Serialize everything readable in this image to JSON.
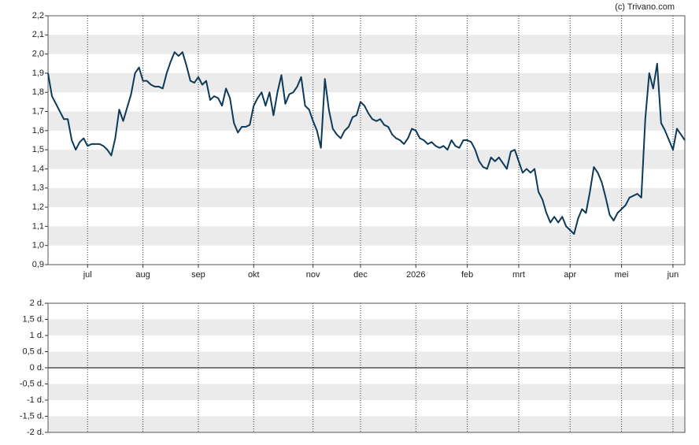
{
  "credit": "(c) Trivano.com",
  "chart_data": [
    {
      "type": "line",
      "categories": [
        null,
        null,
        null,
        null,
        null,
        null,
        null,
        null,
        null,
        null,
        "jul",
        null,
        null,
        null,
        null,
        null,
        null,
        null,
        null,
        null,
        null,
        null,
        null,
        null,
        "aug",
        null,
        null,
        null,
        null,
        null,
        null,
        null,
        null,
        null,
        null,
        null,
        null,
        null,
        "sep",
        null,
        null,
        null,
        null,
        null,
        null,
        null,
        null,
        null,
        null,
        null,
        null,
        null,
        "okt",
        null,
        null,
        null,
        null,
        null,
        null,
        null,
        null,
        null,
        null,
        null,
        null,
        null,
        null,
        "nov",
        null,
        null,
        null,
        null,
        null,
        null,
        null,
        null,
        null,
        null,
        null,
        "dec",
        null,
        null,
        null,
        null,
        null,
        null,
        null,
        null,
        null,
        null,
        null,
        null,
        null,
        "2026",
        null,
        null,
        null,
        null,
        null,
        null,
        null,
        null,
        null,
        null,
        null,
        null,
        "feb",
        null,
        null,
        null,
        null,
        null,
        null,
        null,
        null,
        null,
        null,
        null,
        null,
        "mrt",
        null,
        null,
        null,
        null,
        null,
        null,
        null,
        null,
        null,
        null,
        null,
        null,
        "apr",
        null,
        null,
        null,
        null,
        null,
        null,
        null,
        null,
        null,
        null,
        null,
        null,
        "mei",
        null,
        null,
        null,
        null,
        null,
        null,
        null,
        null,
        null,
        null,
        null,
        null,
        "jun",
        null,
        null,
        null
      ],
      "series": [
        {
          "color": "#0d3a58",
          "values": [
            1.9,
            1.78,
            1.74,
            1.7,
            1.66,
            1.66,
            1.55,
            1.5,
            1.54,
            1.56,
            1.52,
            1.53,
            1.53,
            1.53,
            1.52,
            1.5,
            1.47,
            1.56,
            1.71,
            1.65,
            1.72,
            1.79,
            1.9,
            1.93,
            1.86,
            1.86,
            1.84,
            1.83,
            1.83,
            1.82,
            1.9,
            1.96,
            2.01,
            1.99,
            2.01,
            1.94,
            1.86,
            1.85,
            1.88,
            1.84,
            1.86,
            1.76,
            1.78,
            1.77,
            1.73,
            1.82,
            1.77,
            1.64,
            1.59,
            1.62,
            1.62,
            1.63,
            1.73,
            1.77,
            1.8,
            1.73,
            1.8,
            1.68,
            1.8,
            1.89,
            1.74,
            1.79,
            1.8,
            1.83,
            1.88,
            1.73,
            1.71,
            1.65,
            1.6,
            1.51,
            1.87,
            1.71,
            1.61,
            1.58,
            1.56,
            1.6,
            1.62,
            1.67,
            1.68,
            1.75,
            1.73,
            1.69,
            1.66,
            1.65,
            1.66,
            1.63,
            1.62,
            1.58,
            1.56,
            1.55,
            1.53,
            1.56,
            1.61,
            1.6,
            1.56,
            1.55,
            1.53,
            1.54,
            1.52,
            1.51,
            1.52,
            1.5,
            1.55,
            1.52,
            1.51,
            1.55,
            1.55,
            1.54,
            1.5,
            1.44,
            1.41,
            1.4,
            1.46,
            1.44,
            1.46,
            1.43,
            1.4,
            1.49,
            1.5,
            1.44,
            1.38,
            1.4,
            1.38,
            1.4,
            1.28,
            1.24,
            1.17,
            1.12,
            1.15,
            1.12,
            1.15,
            1.1,
            1.08,
            1.06,
            1.14,
            1.19,
            1.17,
            1.28,
            1.41,
            1.38,
            1.33,
            1.25,
            1.16,
            1.13,
            1.17,
            1.19,
            1.21,
            1.25,
            1.26,
            1.27,
            1.25,
            1.66,
            1.9,
            1.82,
            1.95,
            1.64,
            1.6,
            1.55,
            1.5,
            1.61,
            1.58,
            1.55
          ]
        }
      ],
      "ylim": [
        0.9,
        2.2
      ],
      "yticks": [
        {
          "value": 0.9,
          "label": "0,9"
        },
        {
          "value": 1.0,
          "label": "1,0"
        },
        {
          "value": 1.1,
          "label": "1,1"
        },
        {
          "value": 1.2,
          "label": "1,2"
        },
        {
          "value": 1.3,
          "label": "1,3"
        },
        {
          "value": 1.4,
          "label": "1,4"
        },
        {
          "value": 1.5,
          "label": "1,5"
        },
        {
          "value": 1.6,
          "label": "1,6"
        },
        {
          "value": 1.7,
          "label": "1,7"
        },
        {
          "value": 1.8,
          "label": "1,8"
        },
        {
          "value": 1.9,
          "label": "1,9"
        },
        {
          "value": 2.0,
          "label": "2,0"
        },
        {
          "value": 2.1,
          "label": "2,1"
        },
        {
          "value": 2.2,
          "label": "2,2"
        }
      ],
      "grid": true
    },
    {
      "type": "line",
      "ylim": [
        -2,
        2
      ],
      "yticks": [
        {
          "value": -2,
          "label": "-2 d."
        },
        {
          "value": -1.5,
          "label": "-1,5 d."
        },
        {
          "value": -1,
          "label": "-1 d."
        },
        {
          "value": -0.5,
          "label": "-0,5 d."
        },
        {
          "value": 0,
          "label": "0 d."
        },
        {
          "value": 0.5,
          "label": "0,5 d."
        },
        {
          "value": 1,
          "label": "1 d."
        },
        {
          "value": 1.5,
          "label": "1,5 d."
        },
        {
          "value": 2,
          "label": "2 d."
        }
      ],
      "grid": true
    }
  ]
}
